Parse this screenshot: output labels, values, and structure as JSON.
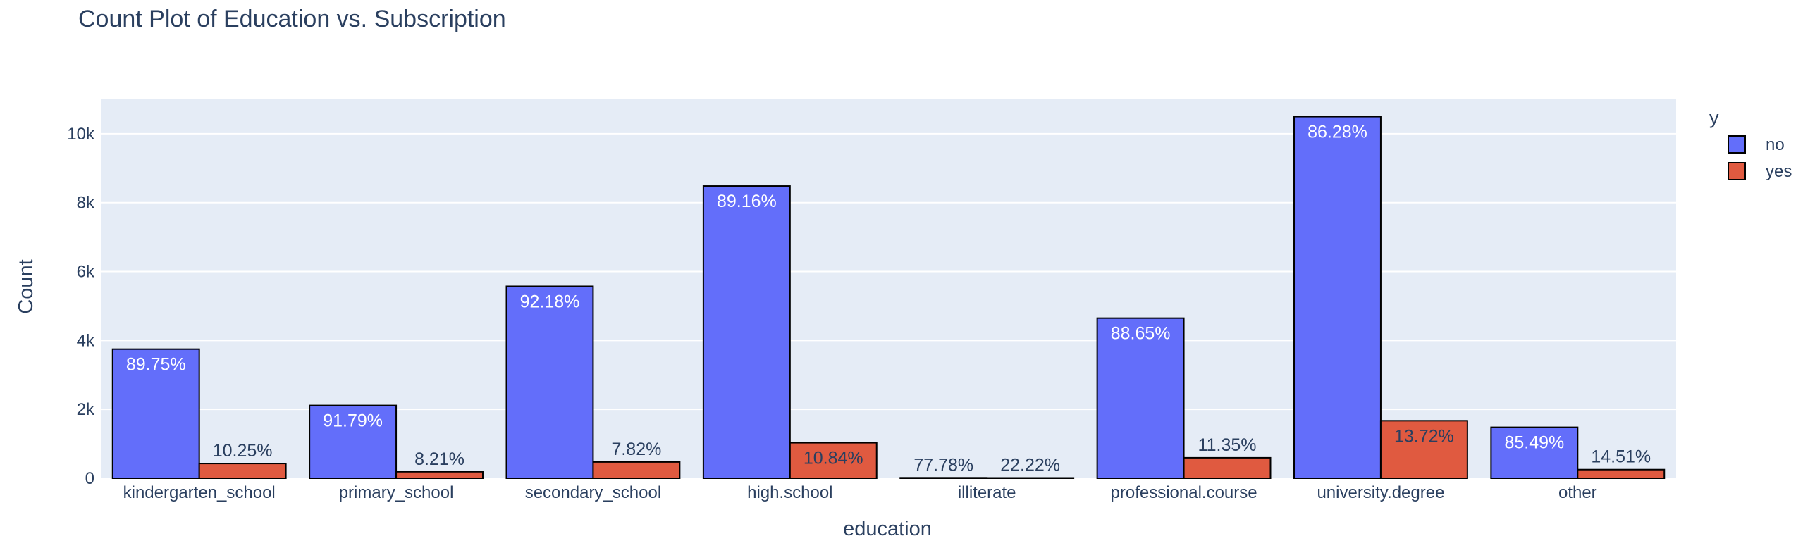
{
  "chart_data": {
    "type": "bar",
    "title": "Count Plot of Education vs. Subscription",
    "xlabel": "education",
    "ylabel": "Count",
    "ylim": [
      0,
      11000
    ],
    "yticks": [
      0,
      2000,
      4000,
      6000,
      8000,
      10000
    ],
    "ytick_labels": [
      "0",
      "2k",
      "4k",
      "6k",
      "8k",
      "10k"
    ],
    "grid": true,
    "legend": {
      "title": "y",
      "position": "top-right"
    },
    "categories": [
      "kindergarten_school",
      "primary_school",
      "secondary_school",
      "high.school",
      "illiterate",
      "professional.course",
      "university.degree",
      "other"
    ],
    "series": [
      {
        "name": "no",
        "color": "#636efa",
        "values": [
          3748,
          2114,
          5572,
          8484,
          14,
          4648,
          10498,
          1480
        ],
        "labels": [
          "89.75%",
          "91.79%",
          "92.18%",
          "89.16%",
          "77.78%",
          "88.65%",
          "86.28%",
          "85.49%"
        ]
      },
      {
        "name": "yes",
        "color": "#e05a40",
        "values": [
          428,
          189,
          473,
          1031,
          4,
          595,
          1670,
          251
        ],
        "labels": [
          "10.25%",
          "8.21%",
          "7.82%",
          "10.84%",
          "22.22%",
          "11.35%",
          "13.72%",
          "14.51%"
        ]
      }
    ]
  }
}
